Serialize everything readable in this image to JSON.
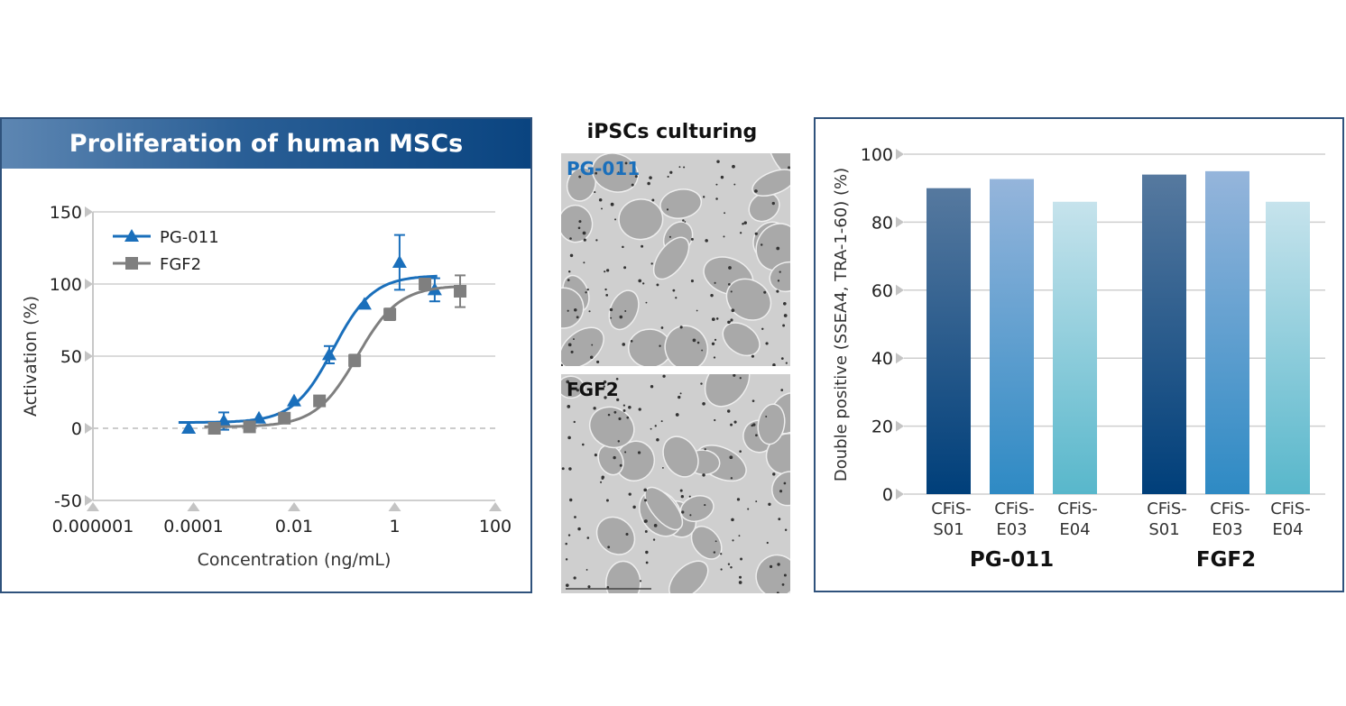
{
  "chart_data": [
    {
      "type": "line",
      "title": "Proliferation of human MSCs",
      "xlabel": "Concentration (ng/mL)",
      "ylabel": "Activation (%)",
      "x_scale": "log",
      "xlim": [
        1e-06,
        100
      ],
      "ylim": [
        -50,
        150
      ],
      "x_ticks": [
        "0.000001",
        "0.0001",
        "0.01",
        "1",
        "100"
      ],
      "y_ticks": [
        "150",
        "100",
        "50",
        "0",
        "-50"
      ],
      "grid": true,
      "legend": "top-left",
      "series": [
        {
          "name": "PG-011",
          "color": "#1a6fbb",
          "marker": "triangle",
          "x": [
            8e-05,
            0.0004,
            0.002,
            0.01,
            0.05,
            0.25,
            1.25,
            6.25
          ],
          "y": [
            0,
            5,
            7,
            19,
            51,
            86,
            115,
            96
          ],
          "err": [
            0,
            6,
            0,
            0,
            6,
            0,
            19,
            8
          ],
          "fit": {
            "bottom": 4,
            "top": 106,
            "ec50": 0.06,
            "hill": 1.1
          }
        },
        {
          "name": "FGF2",
          "color": "#7f7f7f",
          "marker": "square",
          "x": [
            0.00026,
            0.0013,
            0.0064,
            0.032,
            0.16,
            0.8,
            4,
            20
          ],
          "y": [
            0,
            1,
            7,
            19,
            47,
            79,
            100,
            95
          ],
          "err": [
            0,
            0,
            3,
            0,
            4,
            4,
            0,
            11
          ],
          "fit": {
            "bottom": 1,
            "top": 99,
            "ec50": 0.18,
            "hill": 1.05
          }
        }
      ]
    },
    {
      "type": "bar",
      "ylabel": "Double positive (SSEA4, TRA-1-60) (%)",
      "ylim": [
        0,
        100
      ],
      "y_ticks": [
        "100",
        "80",
        "60",
        "40",
        "20",
        "0"
      ],
      "grid": true,
      "groups": [
        {
          "name": "PG-011",
          "categories": [
            [
              "CFiS-",
              "S01"
            ],
            [
              "CFiS-",
              "E03"
            ],
            [
              "CFiS-",
              "E04"
            ]
          ],
          "values": [
            90,
            92.7,
            86
          ]
        },
        {
          "name": "FGF2",
          "categories": [
            [
              "CFiS-",
              "S01"
            ],
            [
              "CFiS-",
              "E03"
            ],
            [
              "CFiS-",
              "E04"
            ]
          ],
          "values": [
            94,
            95,
            86
          ]
        }
      ],
      "bar_colors": [
        [
          "#56799f",
          "#003f7a"
        ],
        [
          "#95b5db",
          "#2e8ac4"
        ],
        [
          "#c6e3ec",
          "#58b7cb"
        ]
      ]
    }
  ],
  "middle": {
    "title": "iPSCs culturing",
    "images": [
      {
        "label": "PG-011",
        "label_color": "#1a6fbb"
      },
      {
        "label": "FGF2",
        "label_color": "#111111"
      }
    ]
  }
}
